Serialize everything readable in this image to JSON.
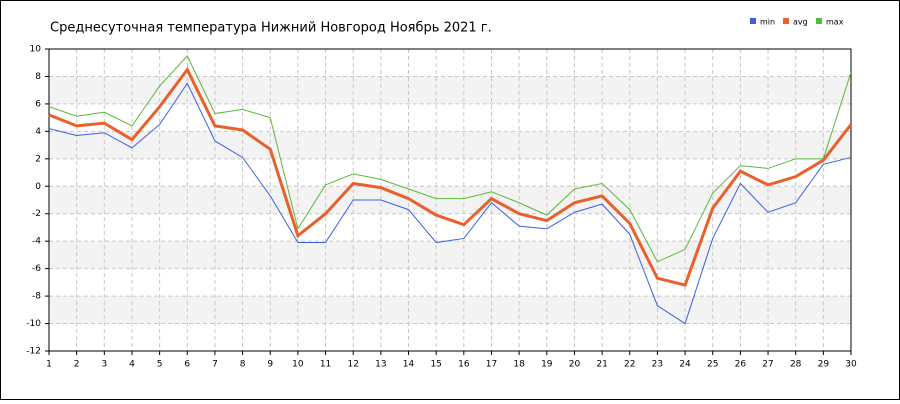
{
  "chart_data": {
    "type": "line",
    "title": "Среднесуточная температура Нижний Новгород  Ноябрь 2021 г.",
    "x": [
      1,
      2,
      3,
      4,
      5,
      6,
      7,
      8,
      9,
      10,
      11,
      12,
      13,
      14,
      15,
      16,
      17,
      18,
      19,
      20,
      21,
      22,
      23,
      24,
      25,
      26,
      27,
      28,
      29,
      30
    ],
    "xlim": [
      1,
      30
    ],
    "xticks": [
      1,
      2,
      3,
      4,
      5,
      6,
      7,
      8,
      9,
      10,
      11,
      12,
      13,
      14,
      15,
      16,
      17,
      18,
      19,
      20,
      21,
      22,
      23,
      24,
      25,
      26,
      27,
      28,
      29,
      30
    ],
    "ylim": [
      -12,
      10
    ],
    "yticks": [
      -12,
      -10,
      -8,
      -6,
      -4,
      -2,
      0,
      2,
      4,
      6,
      8,
      10
    ],
    "grid": true,
    "legend": "top-right",
    "series": [
      {
        "name": "min",
        "color": "#3f5fe0",
        "values": [
          4.2,
          3.7,
          3.9,
          2.8,
          4.5,
          7.5,
          3.3,
          2.1,
          -0.7,
          -4.1,
          -4.1,
          -1.0,
          -1.0,
          -1.7,
          -4.1,
          -3.8,
          -1.2,
          -2.9,
          -3.1,
          -1.9,
          -1.3,
          -3.5,
          -8.7,
          -10.0,
          -3.8,
          0.2,
          -1.9,
          -1.2,
          1.6,
          2.1
        ]
      },
      {
        "name": "avg",
        "color": "#e8602c",
        "values": [
          5.2,
          4.4,
          4.6,
          3.4,
          5.8,
          8.5,
          4.4,
          4.1,
          2.7,
          -3.6,
          -2.0,
          0.2,
          -0.1,
          -0.9,
          -2.1,
          -2.8,
          -0.9,
          -2.0,
          -2.5,
          -1.2,
          -0.7,
          -2.7,
          -6.7,
          -7.2,
          -1.6,
          1.1,
          0.1,
          0.7,
          1.9,
          4.5
        ]
      },
      {
        "name": "max",
        "color": "#5cb83c",
        "values": [
          5.8,
          5.1,
          5.4,
          4.4,
          7.3,
          9.5,
          5.3,
          5.6,
          5.0,
          -3.1,
          0.1,
          0.9,
          0.5,
          -0.2,
          -0.9,
          -0.9,
          -0.4,
          -1.2,
          -2.1,
          -0.2,
          0.2,
          -1.7,
          -5.5,
          -4.6,
          -0.5,
          1.5,
          1.3,
          2.0,
          2.0,
          8.3
        ]
      }
    ]
  }
}
